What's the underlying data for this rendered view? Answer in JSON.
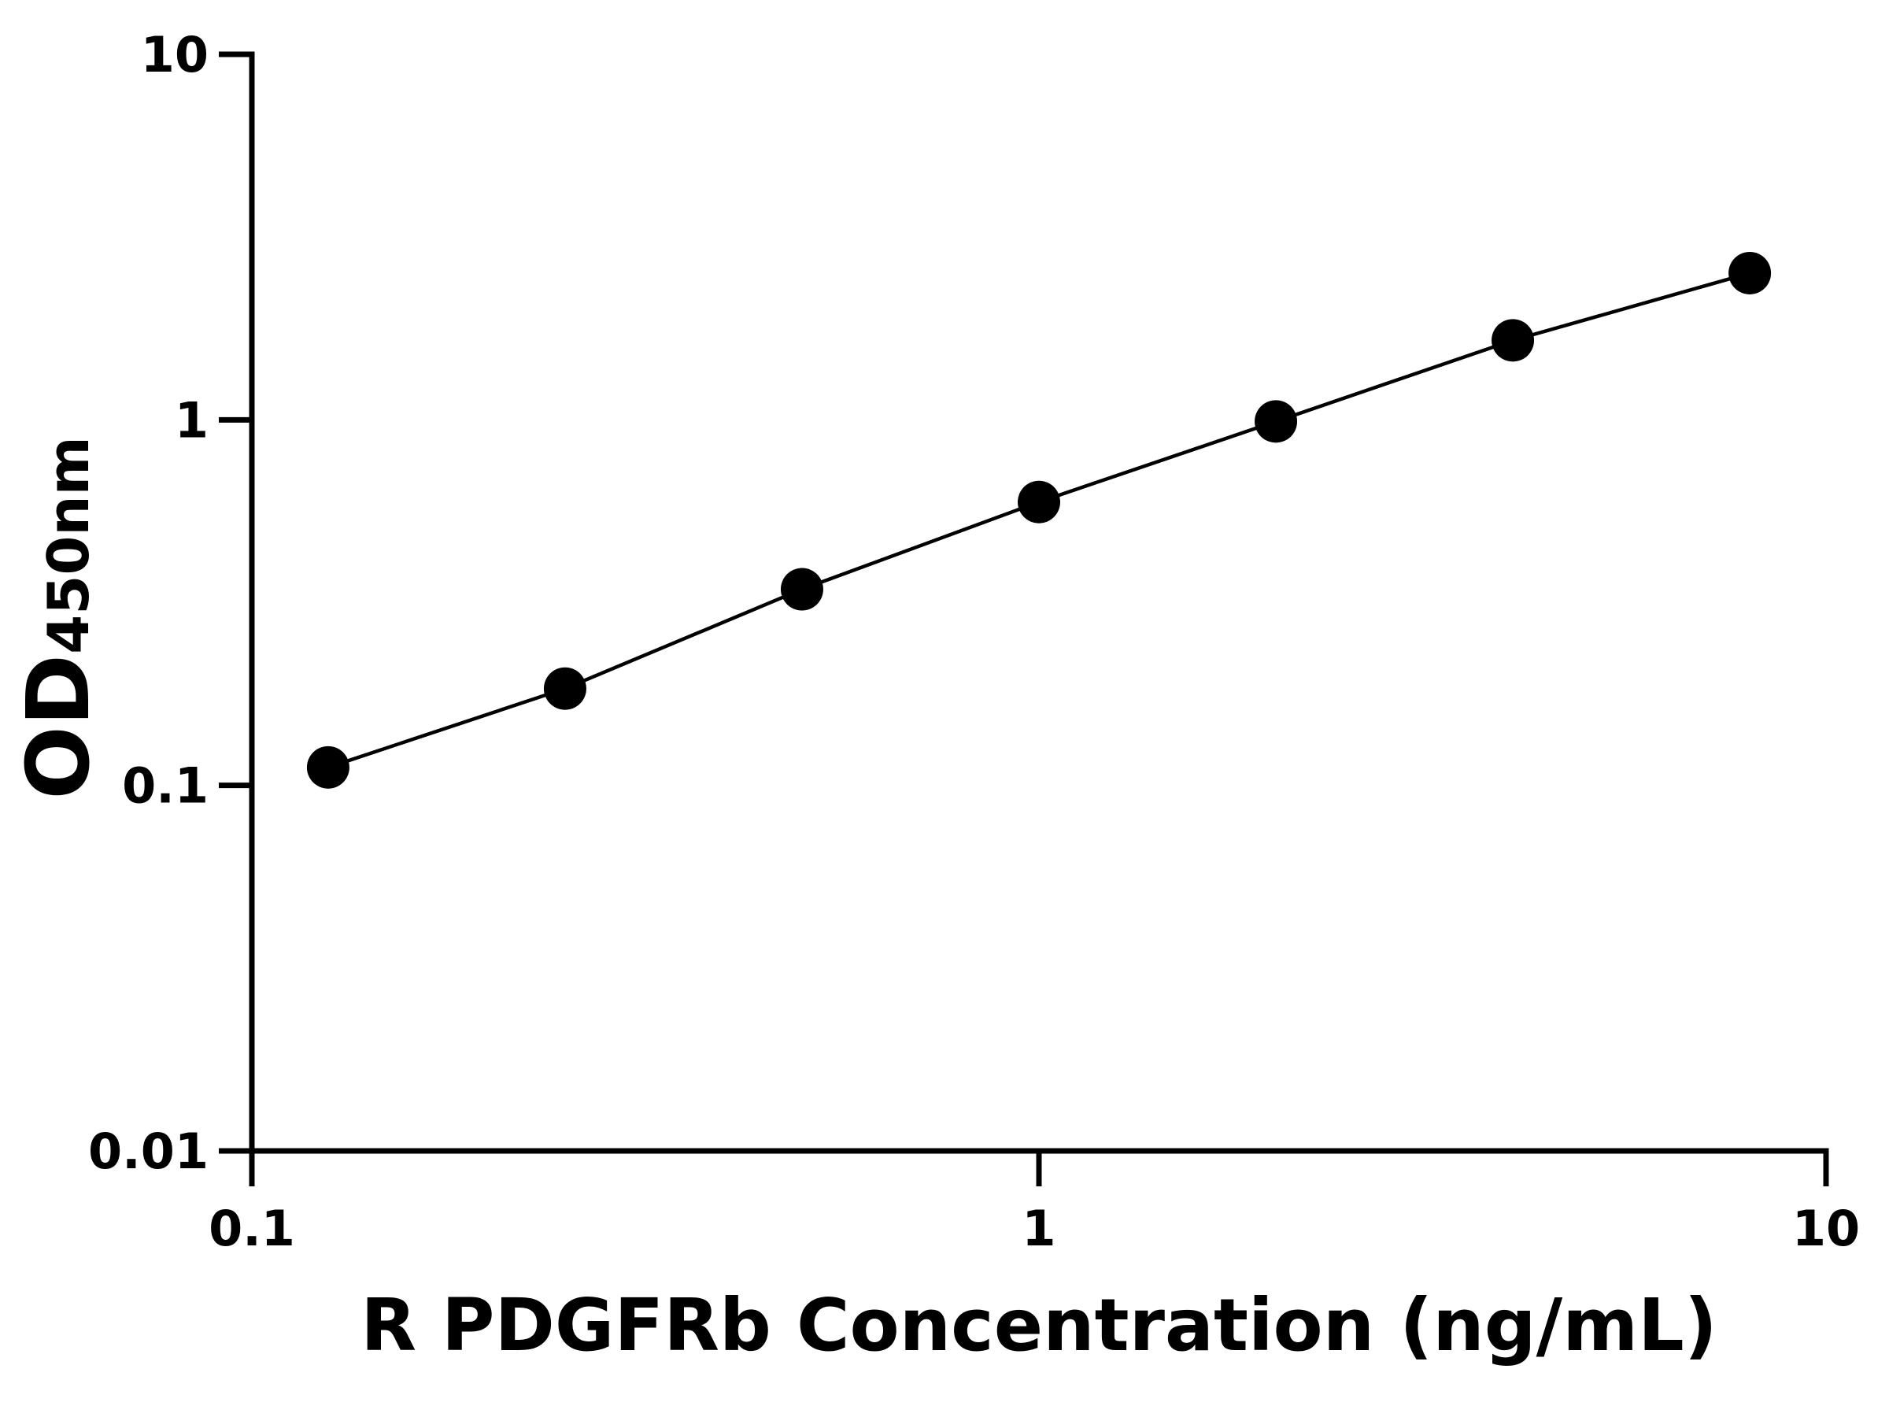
{
  "chart_data": {
    "type": "line",
    "xlabel": "R PDGFRb Concentration (ng/mL)",
    "ylabel": "OD",
    "ylabel_subscript": "450nm",
    "x": [
      0.125,
      0.25,
      0.5,
      1,
      2,
      4,
      8
    ],
    "series": [
      {
        "color": "#000000",
        "values": [
          0.112,
          0.184,
          0.344,
          0.596,
          0.99,
          1.65,
          2.52
        ]
      }
    ],
    "xlim": [
      0.1,
      10
    ],
    "ylim": [
      0.01,
      10
    ],
    "xticks": [
      0.1,
      1,
      10
    ],
    "yticks": [
      0.01,
      0.1,
      1,
      10
    ],
    "xscale": "log",
    "yscale": "log",
    "grid": false,
    "markers": true
  }
}
